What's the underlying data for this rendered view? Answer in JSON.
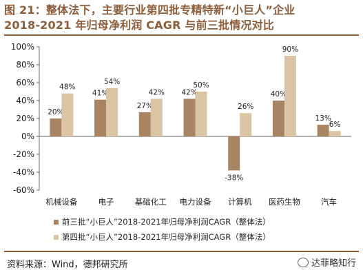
{
  "title": {
    "line1": "图 21：整体法下，主要行业第四批专精特新“小巨人”企业",
    "line2": "2018-2021 年归母净利润 CAGR 与前三批情况对比"
  },
  "source": "资料来源：Wind，德邦研究所",
  "watermark": "达菲略知行",
  "colors": {
    "series1": "#a88462",
    "series2": "#d9c5a3",
    "title": "#8b5d3a"
  },
  "chart_data": {
    "type": "bar",
    "categories": [
      "机械设备",
      "电子",
      "基础化工",
      "电力设备",
      "计算机",
      "医药生物",
      "汽车"
    ],
    "series": [
      {
        "name": "前三批“小巨人”2018-2021年归母净利润CAGR（整体法）",
        "values": [
          20,
          41,
          27,
          42,
          -38,
          40,
          13
        ],
        "labels": [
          "20%",
          "41%",
          "27%",
          "42%",
          "-38%",
          "40%",
          "13%"
        ]
      },
      {
        "name": "第四批“小巨人”2018-2021年归母净利润CAGR（整体法）",
        "values": [
          48,
          54,
          42,
          50,
          26,
          90,
          6
        ],
        "labels": [
          "48%",
          "54%",
          "42%",
          "50%",
          "26%",
          "90%",
          "6%"
        ]
      }
    ],
    "ylim": [
      -60,
      100
    ],
    "yticks": [
      -60,
      -40,
      -20,
      0,
      20,
      40,
      60,
      80,
      100
    ],
    "yticklabels": [
      "-60%",
      "-40%",
      "-20%",
      "0%",
      "20%",
      "40%",
      "60%",
      "80%",
      "100%"
    ],
    "grid": false,
    "legend_position": "bottom-left"
  }
}
